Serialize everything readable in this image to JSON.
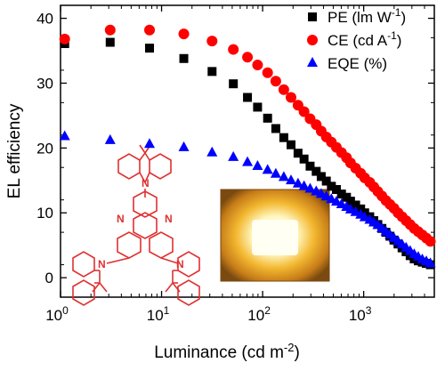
{
  "chart_data": {
    "type": "scatter",
    "xscale": "log",
    "xlim": [
      1,
      5000
    ],
    "ylim": [
      -3,
      42
    ],
    "xlabel": {
      "base": "Luminance (cd m",
      "sup": "-2",
      "tail": ")"
    },
    "ylabel": "EL efficiency",
    "x_ticks": [
      {
        "value": 1,
        "base": "10",
        "sup": "0"
      },
      {
        "value": 10,
        "base": "10",
        "sup": "1"
      },
      {
        "value": 100,
        "base": "10",
        "sup": "2"
      },
      {
        "value": 1000,
        "base": "10",
        "sup": "3"
      }
    ],
    "y_ticks": [
      0,
      10,
      20,
      30,
      40
    ],
    "legend_position": "top-right",
    "series": [
      {
        "name": {
          "base": "PE (lm W",
          "sup": "-1",
          "tail": ")"
        },
        "marker": "square",
        "color": "#000000",
        "points": [
          [
            1.1,
            36.1
          ],
          [
            3.1,
            36.3
          ],
          [
            7.6,
            35.4
          ],
          [
            16.6,
            33.8
          ],
          [
            31.6,
            31.8
          ],
          [
            51.3,
            29.9
          ],
          [
            70.8,
            27.8
          ],
          [
            89.1,
            26.3
          ],
          [
            112,
            24.6
          ],
          [
            135,
            23.0
          ],
          [
            162,
            21.6
          ],
          [
            191,
            20.5
          ],
          [
            224,
            19.2
          ],
          [
            257,
            18.3
          ],
          [
            295,
            17.2
          ],
          [
            339,
            16.4
          ],
          [
            380,
            15.6
          ],
          [
            427,
            14.9
          ],
          [
            479,
            14.1
          ],
          [
            537,
            13.6
          ],
          [
            603,
            12.9
          ],
          [
            676,
            12.4
          ],
          [
            741,
            11.8
          ],
          [
            832,
            11.2
          ],
          [
            933,
            10.6
          ],
          [
            1023,
            10.0
          ],
          [
            1148,
            9.4
          ],
          [
            1259,
            8.8
          ],
          [
            1380,
            8.2
          ],
          [
            1514,
            7.6
          ],
          [
            1660,
            7.0
          ],
          [
            1820,
            6.4
          ],
          [
            1995,
            5.8
          ],
          [
            2188,
            5.2
          ],
          [
            2399,
            4.6
          ],
          [
            2630,
            4.0
          ],
          [
            2884,
            3.4
          ],
          [
            3162,
            2.9
          ],
          [
            3467,
            2.6
          ],
          [
            3802,
            2.4
          ],
          [
            4169,
            2.2
          ],
          [
            4571,
            2.0
          ]
        ]
      },
      {
        "name": {
          "base": "CE (cd A",
          "sup": "-1",
          "tail": ")"
        },
        "marker": "circle",
        "color": "#ff0000",
        "points": [
          [
            1.1,
            36.8
          ],
          [
            3.1,
            38.2
          ],
          [
            7.6,
            38.2
          ],
          [
            16.6,
            37.6
          ],
          [
            31.6,
            36.5
          ],
          [
            51.3,
            35.2
          ],
          [
            70.8,
            34.0
          ],
          [
            89.1,
            32.8
          ],
          [
            112,
            31.6
          ],
          [
            135,
            30.3
          ],
          [
            162,
            29.0
          ],
          [
            191,
            27.8
          ],
          [
            224,
            26.6
          ],
          [
            257,
            25.6
          ],
          [
            295,
            24.5
          ],
          [
            339,
            23.6
          ],
          [
            380,
            22.6
          ],
          [
            427,
            21.7
          ],
          [
            479,
            20.9
          ],
          [
            537,
            20.1
          ],
          [
            603,
            19.3
          ],
          [
            676,
            18.5
          ],
          [
            741,
            17.7
          ],
          [
            832,
            16.9
          ],
          [
            933,
            16.1
          ],
          [
            1023,
            15.4
          ],
          [
            1148,
            14.7
          ],
          [
            1259,
            14.0
          ],
          [
            1380,
            13.3
          ],
          [
            1514,
            12.6
          ],
          [
            1660,
            11.9
          ],
          [
            1820,
            11.3
          ],
          [
            1995,
            10.7
          ],
          [
            2188,
            10.0
          ],
          [
            2399,
            9.4
          ],
          [
            2630,
            8.8
          ],
          [
            2884,
            8.2
          ],
          [
            3162,
            7.6
          ],
          [
            3467,
            7.1
          ],
          [
            3802,
            6.6
          ],
          [
            4169,
            6.1
          ],
          [
            4571,
            5.6
          ]
        ]
      },
      {
        "name": {
          "base": "EQE (%",
          "sup": "",
          "tail": ")"
        },
        "marker": "triangle",
        "color": "#0000ff",
        "points": [
          [
            1.1,
            21.9
          ],
          [
            3.1,
            21.3
          ],
          [
            7.6,
            20.7
          ],
          [
            16.6,
            20.2
          ],
          [
            31.6,
            19.4
          ],
          [
            51.3,
            18.7
          ],
          [
            70.8,
            17.9
          ],
          [
            89.1,
            17.3
          ],
          [
            112,
            16.7
          ],
          [
            135,
            16.1
          ],
          [
            162,
            15.6
          ],
          [
            191,
            15.1
          ],
          [
            224,
            14.6
          ],
          [
            257,
            14.2
          ],
          [
            295,
            13.8
          ],
          [
            339,
            13.4
          ],
          [
            380,
            13.0
          ],
          [
            427,
            12.6
          ],
          [
            479,
            12.2
          ],
          [
            537,
            11.8
          ],
          [
            603,
            11.4
          ],
          [
            676,
            11.0
          ],
          [
            741,
            10.6
          ],
          [
            832,
            10.2
          ],
          [
            933,
            9.8
          ],
          [
            1023,
            9.4
          ],
          [
            1148,
            9.0
          ],
          [
            1259,
            8.6
          ],
          [
            1380,
            8.2
          ],
          [
            1514,
            7.7
          ],
          [
            1660,
            7.2
          ],
          [
            1820,
            6.7
          ],
          [
            1995,
            6.2
          ],
          [
            2188,
            5.7
          ],
          [
            2399,
            5.2
          ],
          [
            2630,
            4.7
          ],
          [
            2884,
            4.2
          ],
          [
            3162,
            3.7
          ],
          [
            3467,
            3.3
          ],
          [
            3802,
            2.9
          ],
          [
            4169,
            2.6
          ],
          [
            4571,
            2.3
          ]
        ]
      }
    ],
    "insets": {
      "molecule_atom_label": "N",
      "molecule_color": "#e03030",
      "device_photo_colors": [
        "#7a4a10",
        "#e6a020",
        "#fff6c0"
      ]
    }
  }
}
